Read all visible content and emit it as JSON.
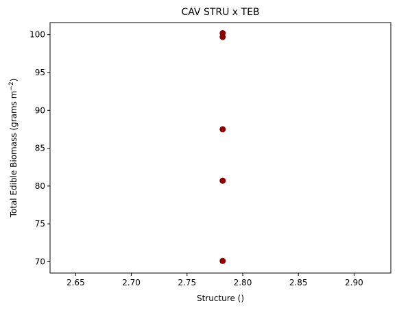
{
  "chart_data": {
    "type": "scatter",
    "title": "CAV STRU x TEB",
    "xlabel": "Structure ()",
    "ylabel_main": "Total Edible Biomass (grams m",
    "ylabel_sup": "−2",
    "ylabel_end": ")",
    "xlim": [
      2.627,
      2.933
    ],
    "ylim": [
      68.5,
      101.6
    ],
    "x_ticks": [
      2.65,
      2.7,
      2.75,
      2.8,
      2.85,
      2.9
    ],
    "x_tick_labels": [
      "2.65",
      "2.70",
      "2.75",
      "2.80",
      "2.85",
      "2.90"
    ],
    "y_ticks": [
      70,
      75,
      80,
      85,
      90,
      95,
      100
    ],
    "y_tick_labels": [
      "70",
      "75",
      "80",
      "85",
      "90",
      "95",
      "100"
    ],
    "grid": false,
    "marker_color": "#8b0000",
    "points": [
      {
        "x": 2.782,
        "y": 100.2
      },
      {
        "x": 2.782,
        "y": 99.7
      },
      {
        "x": 2.782,
        "y": 87.5
      },
      {
        "x": 2.782,
        "y": 80.7
      },
      {
        "x": 2.782,
        "y": 70.1
      }
    ]
  }
}
